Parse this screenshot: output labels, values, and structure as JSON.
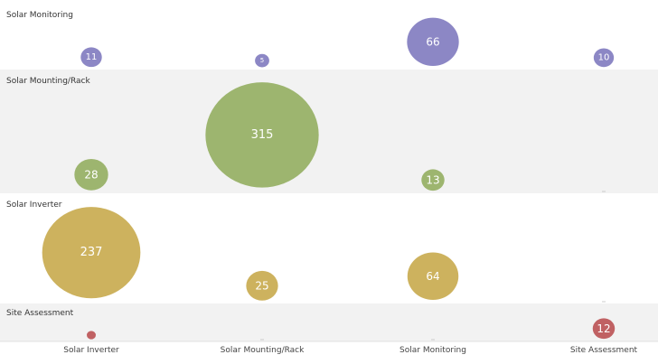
{
  "chart_data": {
    "type": "bubble-matrix",
    "rows": [
      "Solar Monitoring",
      "Solar Mounting/Rack",
      "Solar Inverter",
      "Site Assessment"
    ],
    "columns": [
      "Solar Inverter",
      "Solar Mounting/Rack",
      "Solar Monitoring",
      "Site Assessment"
    ],
    "row_colors": [
      "#8c87c5",
      "#9db56f",
      "#cdb25e",
      "#c06163"
    ],
    "band_shading": [
      "#ffffff",
      "#f2f2f2",
      "#ffffff",
      "#f2f2f2"
    ],
    "values": [
      [
        11,
        5,
        66,
        10
      ],
      [
        28,
        315,
        13,
        0
      ],
      [
        237,
        25,
        64,
        0
      ],
      [
        2,
        0,
        0,
        12
      ]
    ],
    "value_labels": [
      [
        "11",
        "5",
        "66",
        "10"
      ],
      [
        "28",
        "315",
        "13",
        ""
      ],
      [
        "237",
        "25",
        "64",
        ""
      ],
      [
        "",
        "",
        "",
        "12"
      ]
    ]
  }
}
